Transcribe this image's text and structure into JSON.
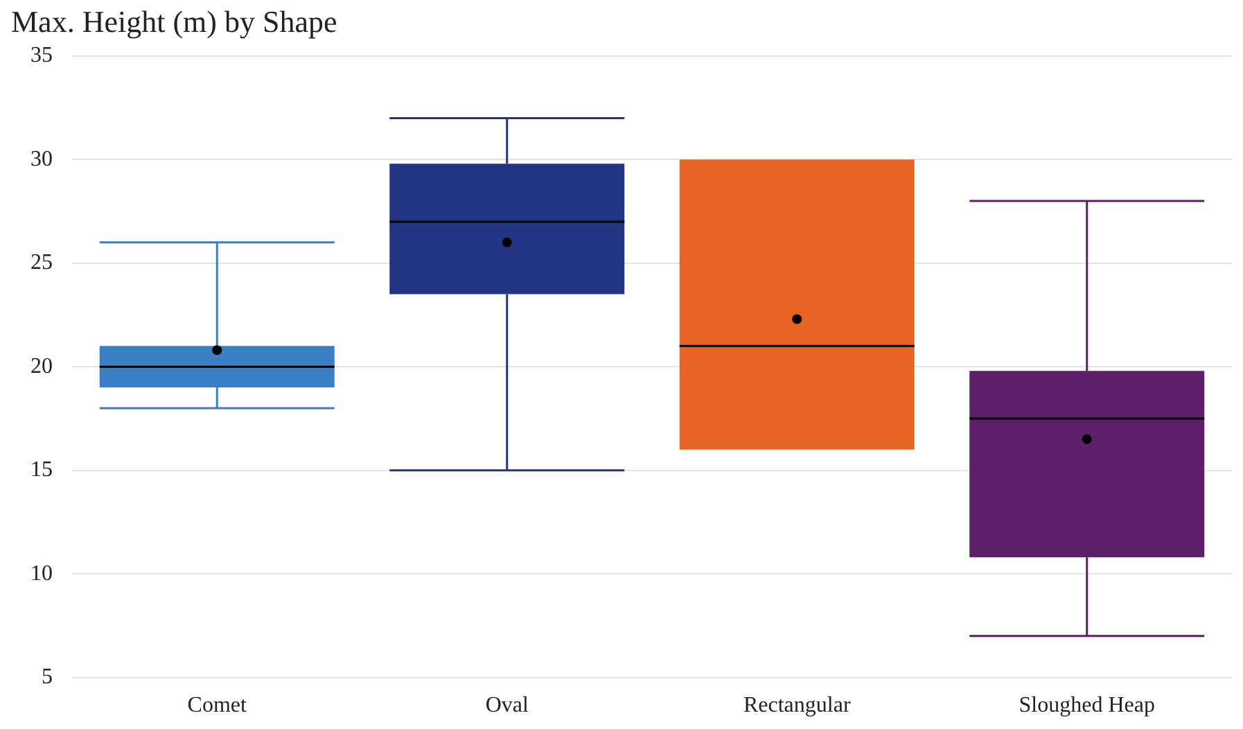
{
  "chart_data": {
    "type": "box",
    "title": "Max. Height (m) by Shape",
    "categories": [
      "Comet",
      "Oval",
      "Rectangular",
      "Sloughed Heap"
    ],
    "colors": [
      "#3a7fc4",
      "#233582",
      "#e86424",
      "#5e1f69"
    ],
    "boxes": [
      {
        "low": 18,
        "q1": 19,
        "median": 20,
        "q3": 21,
        "high": 26,
        "mean": 20.8
      },
      {
        "low": 15,
        "q1": 23.5,
        "median": 27,
        "q3": 29.8,
        "high": 32,
        "mean": 26
      },
      {
        "low": 16,
        "q1": 16,
        "median": 21,
        "q3": 30,
        "high": 30,
        "mean": 22.3
      },
      {
        "low": 7,
        "q1": 10.8,
        "median": 17.5,
        "q3": 19.8,
        "high": 28,
        "mean": 16.5
      }
    ],
    "ylim": [
      5,
      35
    ],
    "yticks": [
      5,
      10,
      15,
      20,
      25,
      30,
      35
    ],
    "grid": "y"
  }
}
